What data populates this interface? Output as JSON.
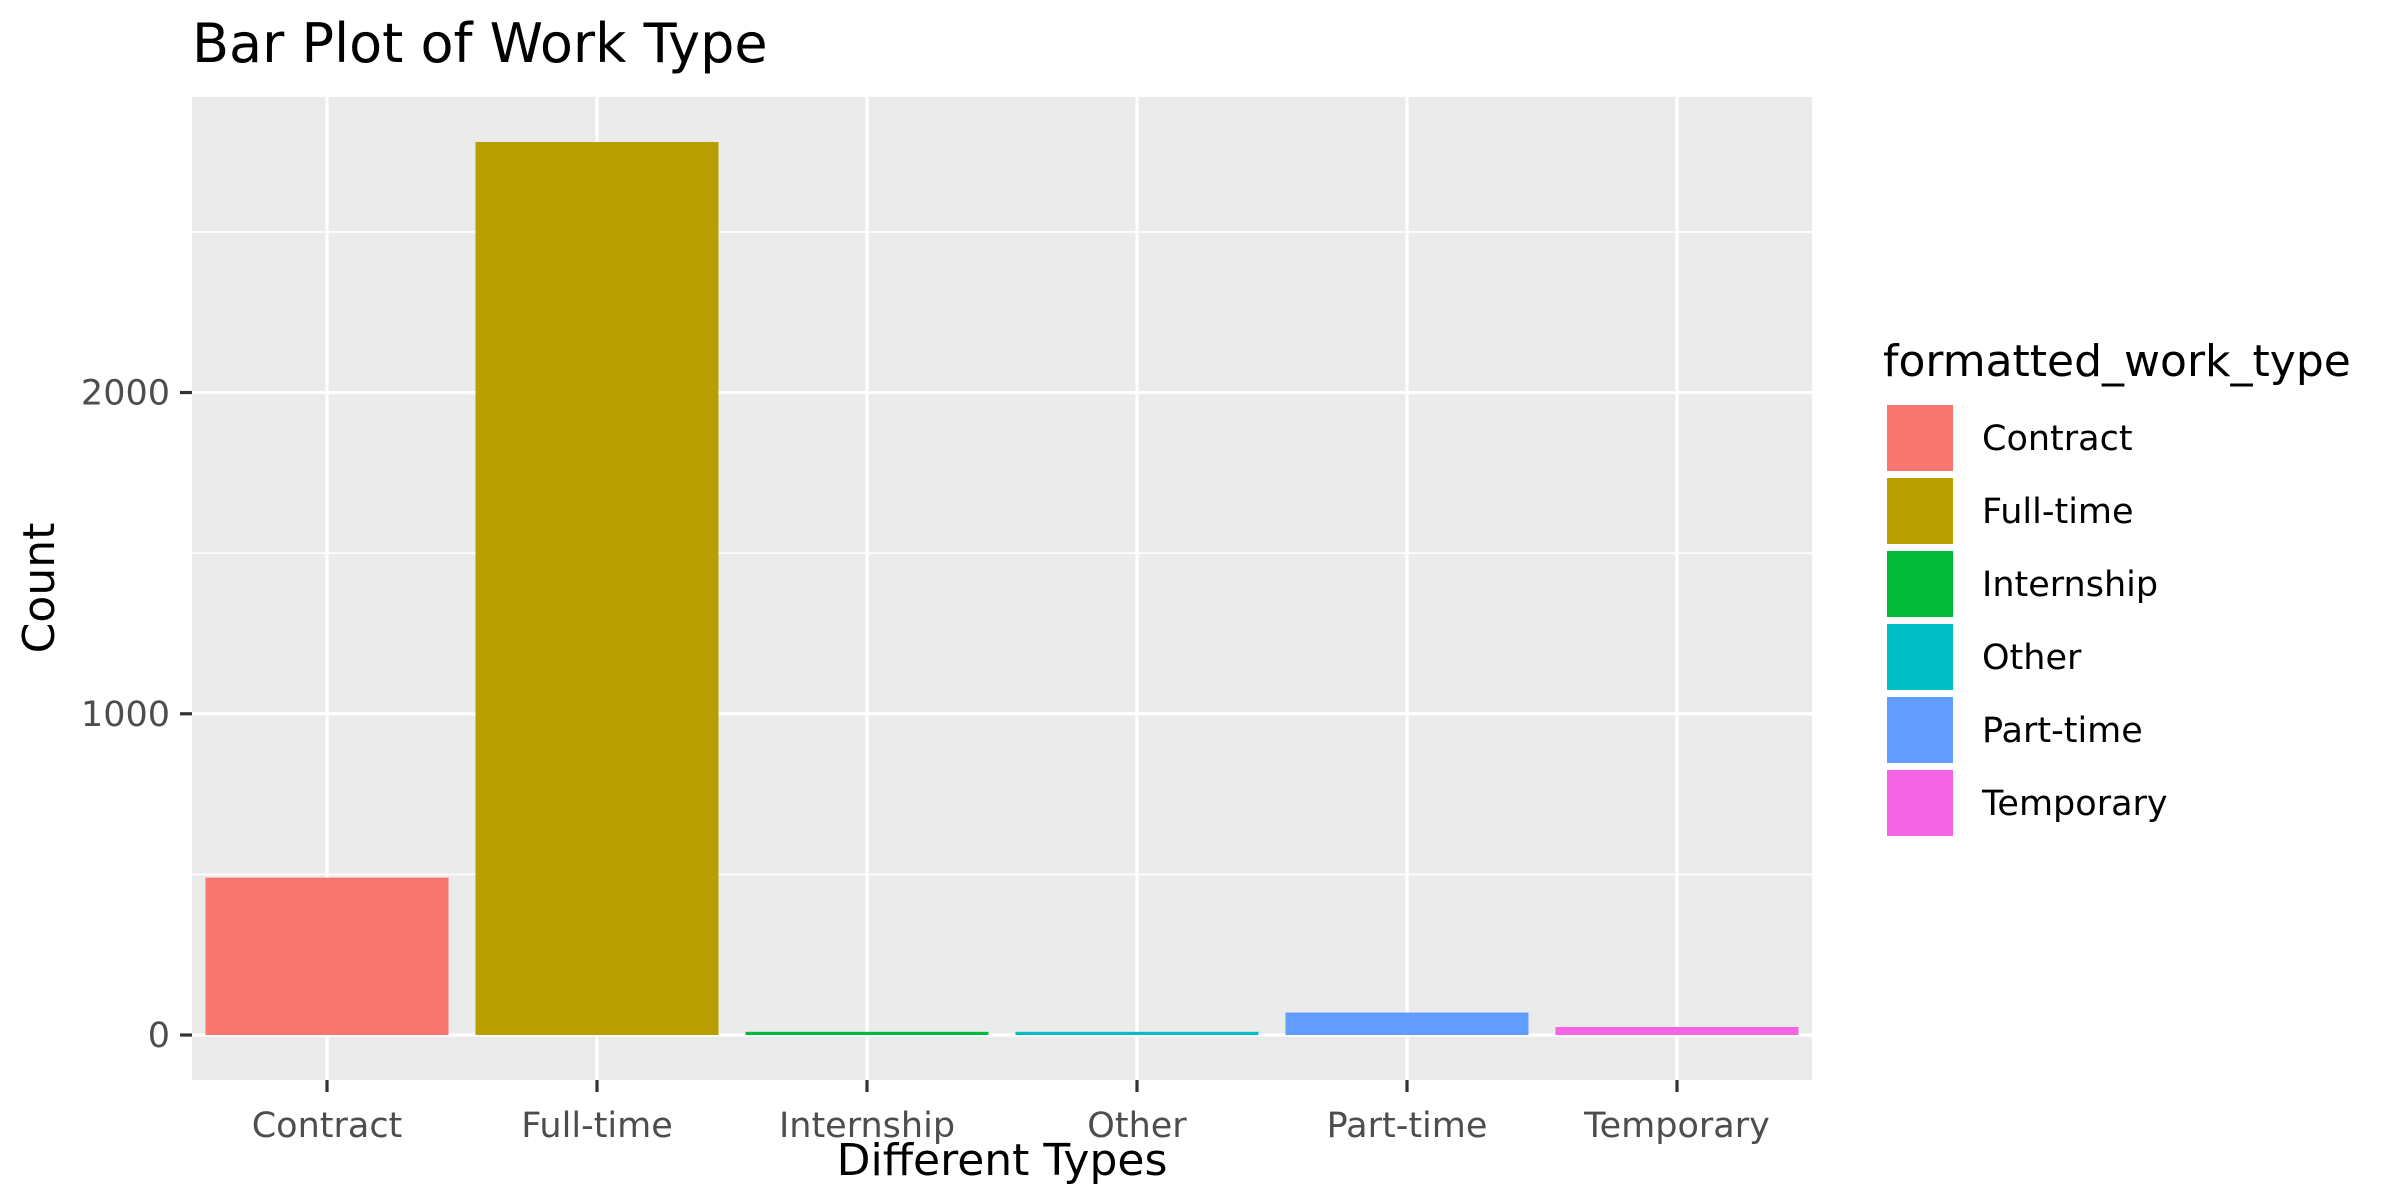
{
  "chart_data": {
    "type": "bar",
    "title": "Bar Plot of Work Type",
    "xlabel": "Different Types",
    "ylabel": "Count",
    "categories": [
      "Contract",
      "Full-time",
      "Internship",
      "Other",
      "Part-time",
      "Temporary"
    ],
    "values": [
      490,
      2780,
      10,
      10,
      70,
      25
    ],
    "colors": [
      "#F8766D",
      "#B79F00",
      "#00BA38",
      "#00BFC4",
      "#619CFF",
      "#F564E3"
    ],
    "yticks": [
      0,
      1000,
      2000
    ],
    "ytick_labels": [
      "0",
      "1000",
      "2000"
    ],
    "ylim": [
      -140,
      2920
    ],
    "grid": true,
    "legend": {
      "title": "formatted_work_type",
      "position": "right",
      "entries": [
        "Contract",
        "Full-time",
        "Internship",
        "Other",
        "Part-time",
        "Temporary"
      ]
    }
  }
}
